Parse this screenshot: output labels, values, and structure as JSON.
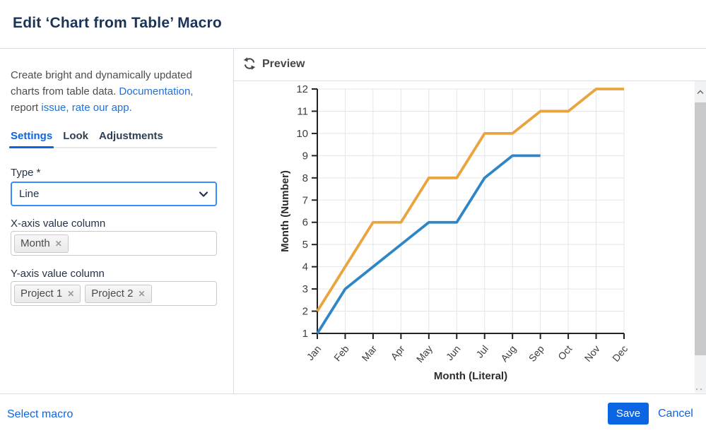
{
  "window": {
    "title": "Edit ‘Chart from Table’ Macro"
  },
  "panel": {
    "description": {
      "segments": [
        {
          "text": "Create bright and dynamically updated charts from table data. "
        },
        {
          "text": "Documentation,",
          "link": true
        },
        {
          "text": " report "
        },
        {
          "text": "issue,",
          "link": true
        },
        {
          "text": " "
        },
        {
          "text": "rate our app.",
          "link": true
        }
      ]
    },
    "tabs": [
      {
        "label": "Settings",
        "active": true
      },
      {
        "label": "Look",
        "active": false
      },
      {
        "label": "Adjustments",
        "active": false
      }
    ],
    "type_field": {
      "label": "Type *",
      "value": "Line"
    },
    "x_axis_field": {
      "label": "X-axis value column",
      "tags": [
        "Month"
      ]
    },
    "y_axis_field": {
      "label": "Y-axis value column",
      "tags": [
        "Project 1",
        "Project 2"
      ]
    },
    "remove_icon": "✕"
  },
  "preview": {
    "title": "Preview"
  },
  "footer": {
    "select_macro": "Select macro",
    "save": "Save",
    "cancel": "Cancel"
  },
  "colors": {
    "accent_blue": "#0c66e4",
    "select_border": "#388bff",
    "series_blue": "#2f86c7",
    "series_orange": "#e9a43e",
    "gridline": "#e4e5e7",
    "axis": "#222222"
  },
  "chart_data": {
    "type": "line",
    "categories": [
      "Jan",
      "Feb",
      "Mar",
      "Apr",
      "May",
      "Jun",
      "Jul",
      "Aug",
      "Sep",
      "Oct",
      "Nov",
      "Dec"
    ],
    "series": [
      {
        "name": "Project 1",
        "color": "#2f86c7",
        "values": [
          1,
          3,
          4,
          5,
          6,
          6,
          8,
          9,
          9,
          null,
          null,
          null
        ]
      },
      {
        "name": "Project 2",
        "color": "#e9a43e",
        "values": [
          2,
          4,
          6,
          6,
          8,
          8,
          10,
          10,
          11,
          11,
          12,
          12
        ]
      }
    ],
    "xlabel": "Month (Literal)",
    "ylabel": "Month (Number)",
    "ylim": [
      1,
      12
    ],
    "yticks": [
      1,
      2,
      3,
      4,
      5,
      6,
      7,
      8,
      9,
      10,
      11,
      12
    ],
    "grid": true,
    "legend": "none"
  }
}
